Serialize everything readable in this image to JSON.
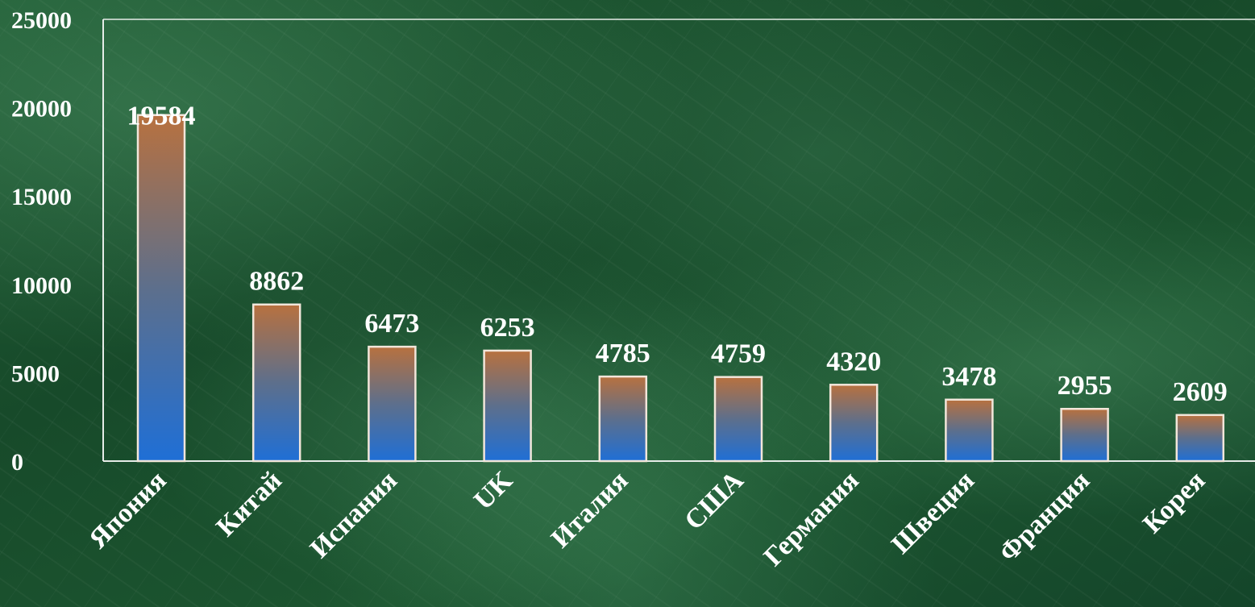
{
  "chart_data": {
    "type": "bar",
    "title": "",
    "xlabel": "",
    "ylabel": "",
    "categories": [
      "Япония",
      "Китай",
      "Испания",
      "UK",
      "Италия",
      "США",
      "Германия",
      "Швеция",
      "Франция",
      "Корея"
    ],
    "values": [
      19584,
      8862,
      6473,
      6253,
      4785,
      4759,
      4320,
      3478,
      2955,
      2609
    ],
    "ylim": [
      0,
      25000
    ],
    "yticks": [
      0,
      5000,
      10000,
      15000,
      20000,
      25000
    ],
    "grid": false,
    "legend": "none",
    "data_labels": true,
    "colors": {
      "bar_top": "#b8713f",
      "bar_mid": "#5d6f8c",
      "bar_bottom": "#1f6fd6",
      "bar_border": "#f2e6da",
      "axis": "#e6ece8",
      "text": "#ffffff",
      "background": "#1b5530"
    }
  }
}
